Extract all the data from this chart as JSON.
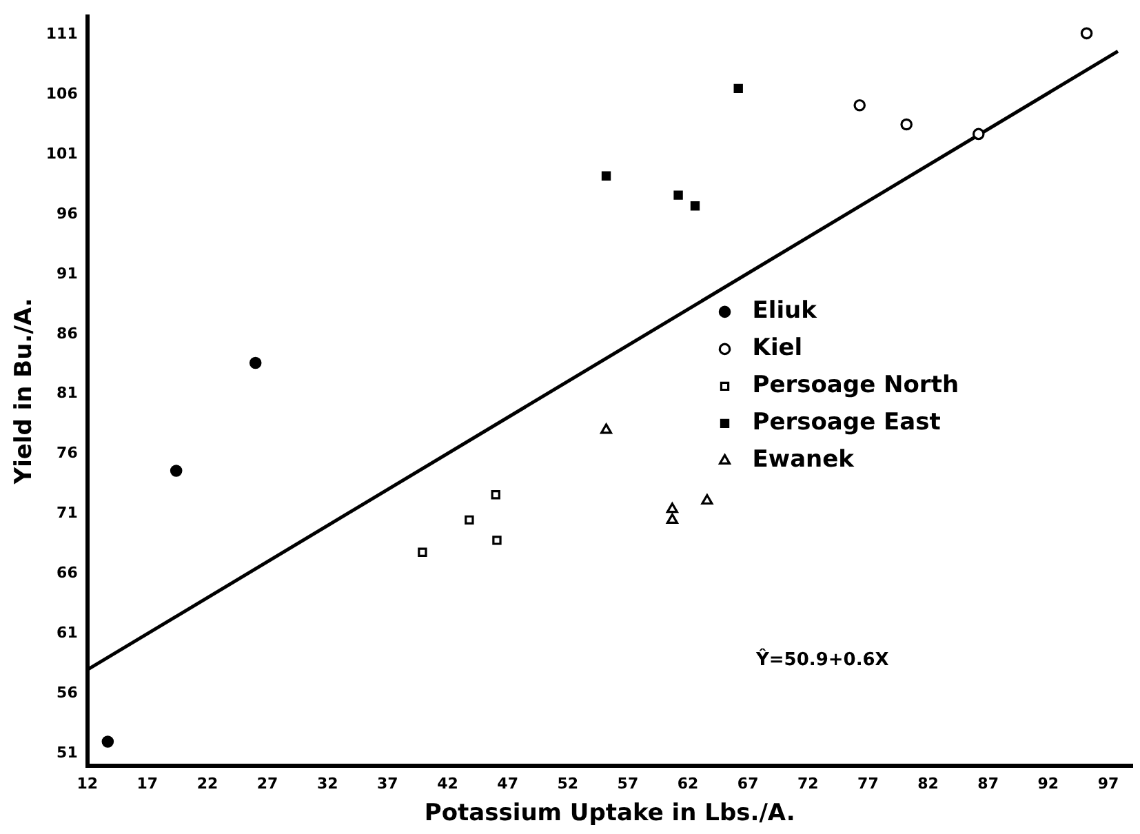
{
  "chart_data": {
    "type": "scatter",
    "xlabel": "Potassium Uptake in Lbs./A.",
    "ylabel": "Yield in Bu./A.",
    "xlim": [
      12,
      99
    ],
    "ylim": [
      50,
      112.5
    ],
    "xticks": [
      12,
      17,
      22,
      27,
      32,
      37,
      42,
      47,
      52,
      57,
      62,
      67,
      72,
      77,
      82,
      87,
      92,
      97
    ],
    "yticks": [
      51,
      56,
      61,
      66,
      71,
      76,
      81,
      86,
      91,
      96,
      101,
      106,
      111
    ],
    "grid": false,
    "legend": "right",
    "series": [
      {
        "name": "Eliuk",
        "color": "#000000",
        "marker": "circle",
        "x": [
          13.7,
          19.4,
          26.0
        ],
        "values": [
          52.0,
          74.6,
          83.6
        ]
      },
      {
        "name": "Kiel",
        "color": "#000000",
        "marker": "circle",
        "x": [
          76.3,
          80.2,
          86.2,
          95.2
        ],
        "values": [
          105.1,
          103.5,
          102.7,
          111.1
        ]
      },
      {
        "name": "Persoage North",
        "color": "#000000",
        "marker": "square",
        "x": [
          39.9,
          43.8,
          46.0,
          46.1
        ],
        "values": [
          67.8,
          70.5,
          72.6,
          68.8
        ]
      },
      {
        "name": "Persoage East",
        "color": "#000000",
        "marker": "square",
        "x": [
          55.2,
          61.2,
          62.6,
          66.2
        ],
        "values": [
          99.2,
          97.6,
          96.7,
          106.5
        ]
      },
      {
        "name": "Ewanek",
        "color": "#000000",
        "marker": "triangle",
        "x": [
          55.2,
          60.7,
          60.7,
          63.6
        ],
        "values": [
          78.0,
          71.4,
          70.5,
          72.1
        ]
      },
      {
        "type": "line",
        "color": "#000000",
        "marker": "none",
        "x": [
          12,
          97.8
        ],
        "values": [
          58.0,
          109.6
        ]
      }
    ],
    "annotations": [
      {
        "text": "Ŷ=50.9+0.6X"
      }
    ]
  }
}
